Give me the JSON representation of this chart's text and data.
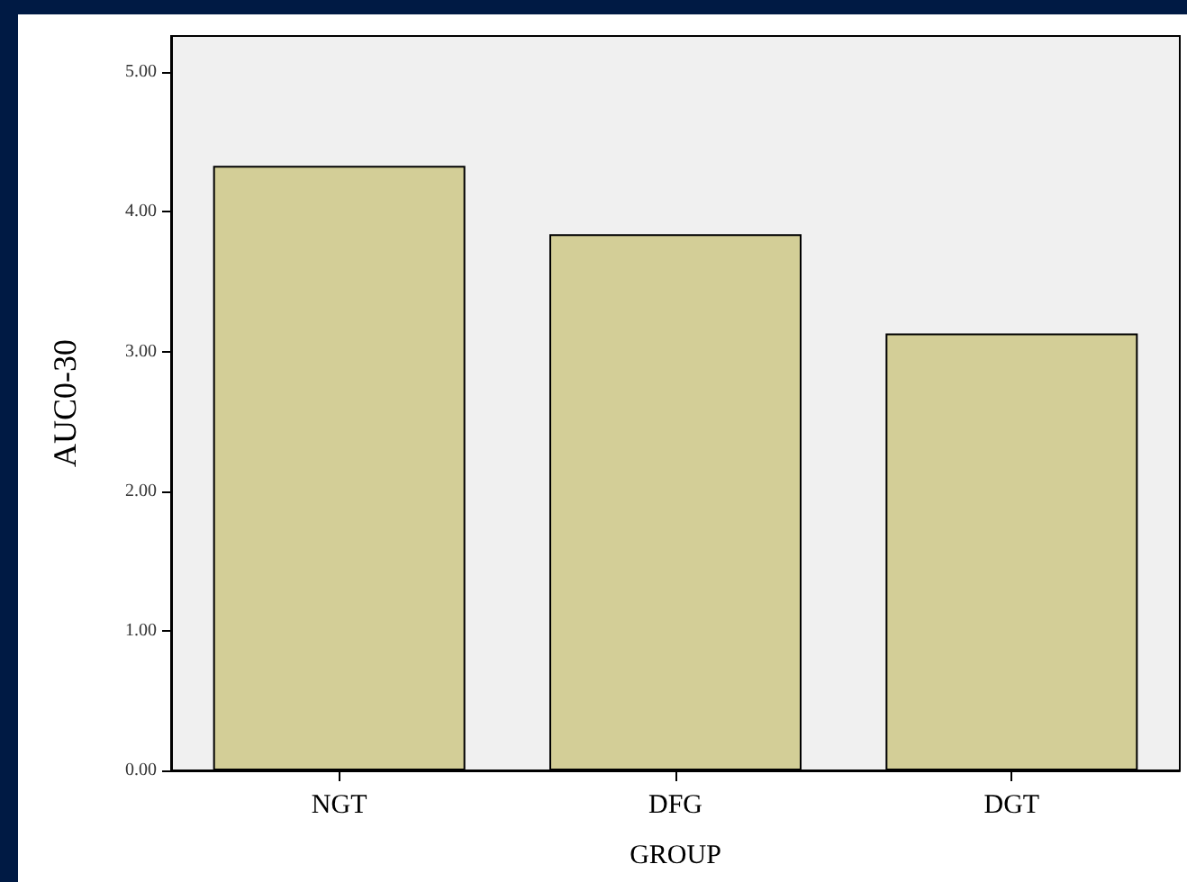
{
  "chart_data": {
    "type": "bar",
    "categories": [
      "NGT",
      "DFG",
      "DGT"
    ],
    "values": [
      4.33,
      3.84,
      3.13
    ],
    "color": "#d3ce97",
    "xlabel": "GROUP",
    "ylabel": "AUC0-30",
    "ylim": [
      0,
      5.26
    ],
    "yticks": [
      {
        "value": 0,
        "label": "0.00"
      },
      {
        "value": 1,
        "label": "1.00"
      },
      {
        "value": 2,
        "label": "2.00"
      },
      {
        "value": 3,
        "label": "3.00"
      },
      {
        "value": 4,
        "label": "4.00"
      },
      {
        "value": 5,
        "label": "5.00"
      }
    ],
    "grid": false
  }
}
